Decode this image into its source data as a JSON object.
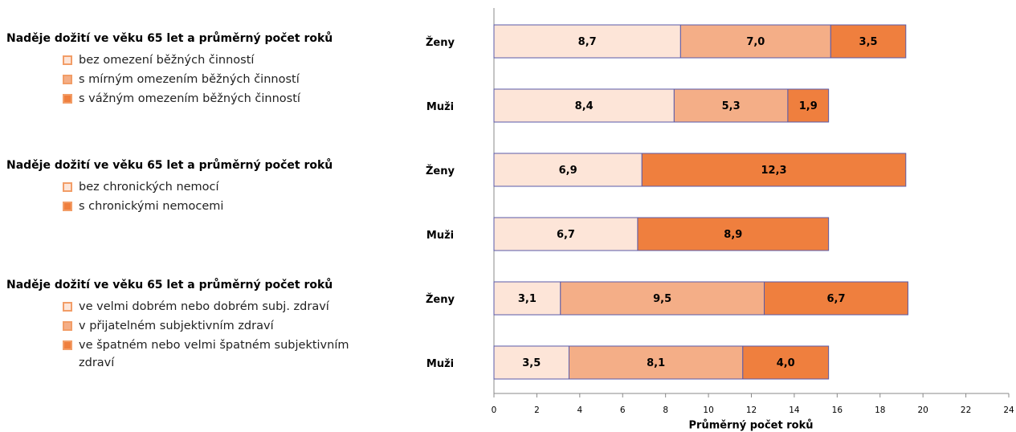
{
  "chart_data": {
    "type": "bar",
    "orientation": "horizontal",
    "stacked": true,
    "xlabel": "Průměrný počet roků",
    "xlim": [
      0,
      24
    ],
    "xticks": [
      0,
      2,
      4,
      6,
      8,
      10,
      12,
      14,
      16,
      18,
      20,
      22,
      24
    ],
    "groups": [
      {
        "title": "Naděje dožití ve věku 65 let a průměrný počet roků",
        "categories": [
          "Ženy",
          "Muži"
        ],
        "series": [
          {
            "name": "bez omezení běžných činností",
            "color": "#fde5d8",
            "values": [
              8.7,
              8.4
            ],
            "value_labels": [
              "8,7",
              "8,4"
            ]
          },
          {
            "name": "s mírným omezením běžných činností",
            "color": "#f4ae87",
            "values": [
              7.0,
              5.3
            ],
            "value_labels": [
              "7,0",
              "5,3"
            ]
          },
          {
            "name": "s vážným omezením běžných činností",
            "color": "#ef7f3e",
            "values": [
              3.5,
              1.9
            ],
            "value_labels": [
              "3,5",
              "1,9"
            ]
          }
        ]
      },
      {
        "title": "Naděje dožití ve věku 65 let a průměrný počet roků",
        "categories": [
          "Ženy",
          "Muži"
        ],
        "series": [
          {
            "name": "bez chronických nemocí",
            "color": "#fde5d8",
            "values": [
              6.9,
              6.7
            ],
            "value_labels": [
              "6,9",
              "6,7"
            ]
          },
          {
            "name": "s chronickými nemocemi",
            "color": "#ef7f3e",
            "values": [
              12.3,
              8.9
            ],
            "value_labels": [
              "12,3",
              "8,9"
            ]
          }
        ]
      },
      {
        "title": "Naděje dožití ve věku 65 let a průměrný počet roků",
        "categories": [
          "Ženy",
          "Muži"
        ],
        "series": [
          {
            "name": "ve velmi dobrém nebo dobrém subj. zdraví",
            "color": "#fde5d8",
            "values": [
              3.1,
              3.5
            ],
            "value_labels": [
              "3,1",
              "3,5"
            ]
          },
          {
            "name": "v přijatelném subjektivním zdraví",
            "color": "#f4ae87",
            "values": [
              9.5,
              8.1
            ],
            "value_labels": [
              "9,5",
              "8,1"
            ]
          },
          {
            "name": "ve špatném nebo velmi špatném subjektivním zdraví",
            "color": "#ef7f3e",
            "values": [
              6.7,
              4.0
            ],
            "value_labels": [
              "6,7",
              "4,0"
            ]
          }
        ]
      }
    ]
  }
}
